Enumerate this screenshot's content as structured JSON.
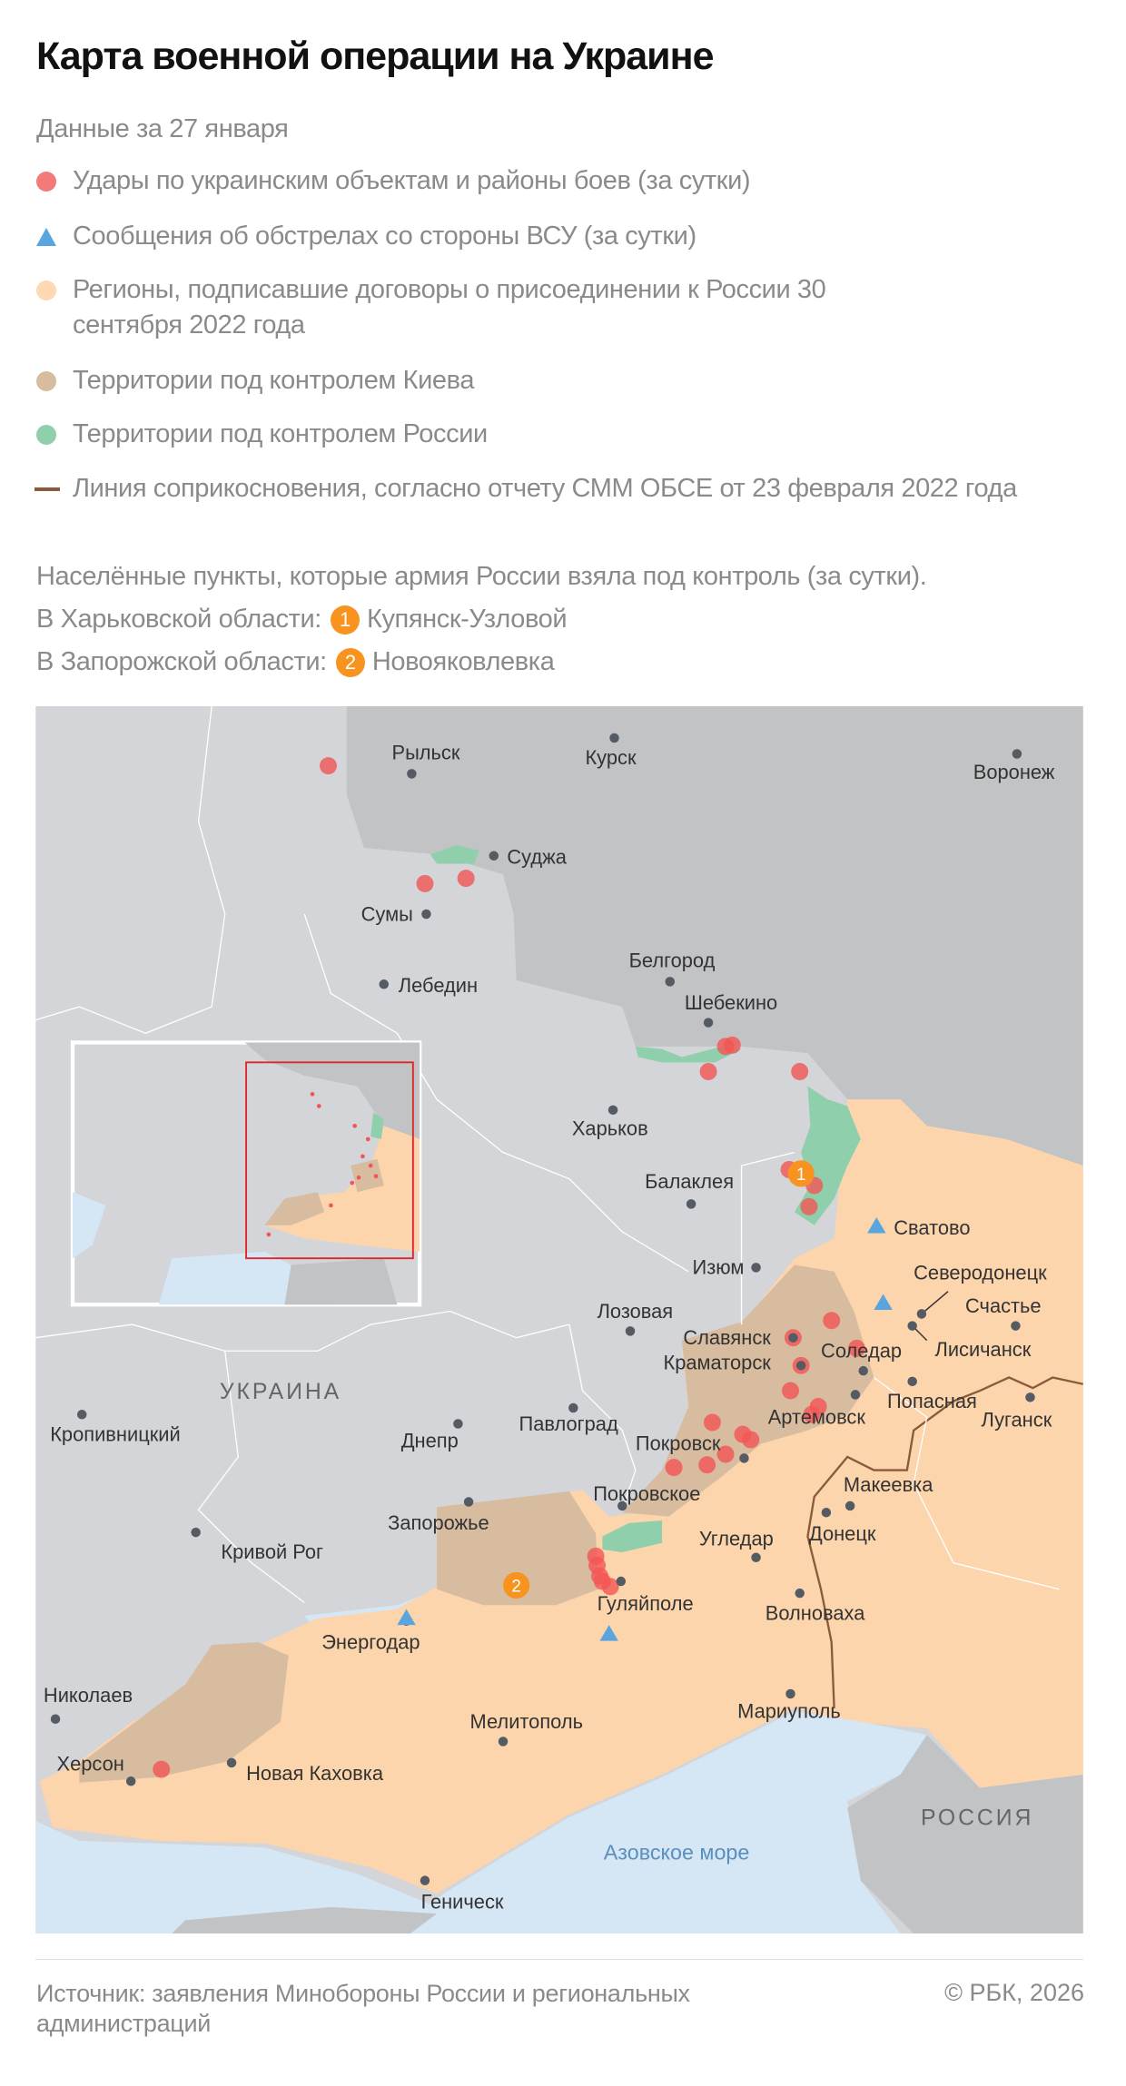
{
  "title": "Карта военной операции на Украине",
  "subtitle": "Данные за 27 января",
  "legend": [
    {
      "label": "Удары по украинским объектам и районы боев (за сутки)",
      "symbol": "circle",
      "color": "#f47a7a"
    },
    {
      "label": "Сообщения об обстрелах со стороны ВСУ (за сутки)",
      "symbol": "triangle",
      "color": "#5aa5dd"
    },
    {
      "label": "Регионы, подписавшие договоры о присоединении к России 30 сентября 2022 года",
      "symbol": "circle",
      "color": "#fcd9b0"
    },
    {
      "label": "Территории под контролем Киева",
      "symbol": "circle",
      "color": "#d7bca0"
    },
    {
      "label": "Территории под контролем России",
      "symbol": "circle",
      "color": "#8fcfab"
    },
    {
      "label": "Линия соприкосновения, согласно отчету СММ ОБСЕ от 23 февраля 2022 года",
      "symbol": "line",
      "color": "#8b5a3c"
    }
  ],
  "captured": {
    "heading": "Населённые пункты, которые армия России взяла под контроль (за сутки).",
    "items": [
      {
        "region": "В Харьковской области:",
        "number": "1",
        "place": "Купянск-Узловой"
      },
      {
        "region": "В Запорожской области:",
        "number": "2",
        "place": "Новояковлевка"
      }
    ]
  },
  "map": {
    "region_labels": {
      "ukraine": "УКРАИНА",
      "russia": "РОССИЯ",
      "sea": "Азовское море"
    },
    "cities": [
      "Рыльск",
      "Курск",
      "Воронеж",
      "Суджа",
      "Сумы",
      "Лебедин",
      "Белгород",
      "Шебекино",
      "Харьков",
      "Балаклея",
      "Сватово",
      "Изюм",
      "Северодонецк",
      "Счастье",
      "Лисичанск",
      "Лозовая",
      "Славянск",
      "Краматорск",
      "Соледар",
      "Попасная",
      "Луганск",
      "Артемовск",
      "Павлоград",
      "Днепр",
      "Кропивницкий",
      "Покровск",
      "Покровское",
      "Макеевка",
      "Донецк",
      "Запорожье",
      "Кривой Рог",
      "Угледар",
      "Гуляйполе",
      "Волноваха",
      "Энергодар",
      "Николаев",
      "Мариуполь",
      "Мелитополь",
      "Херсон",
      "Новая Каховка",
      "Геническ"
    ],
    "colors": {
      "ukraine": "#d3d5d8",
      "russia": "#c2c3c5",
      "sea": "#d5e6f5",
      "annexed": "#fcd5ac",
      "kyiv": "#d7bca0",
      "russia_control": "#8fcfab",
      "strike": "#f25555",
      "shelling": "#5aa5dd",
      "captured": "#f7931e"
    }
  },
  "source": "Источник: заявления Минобороны России и региональных администраций",
  "copyright": "© РБК, 2026"
}
